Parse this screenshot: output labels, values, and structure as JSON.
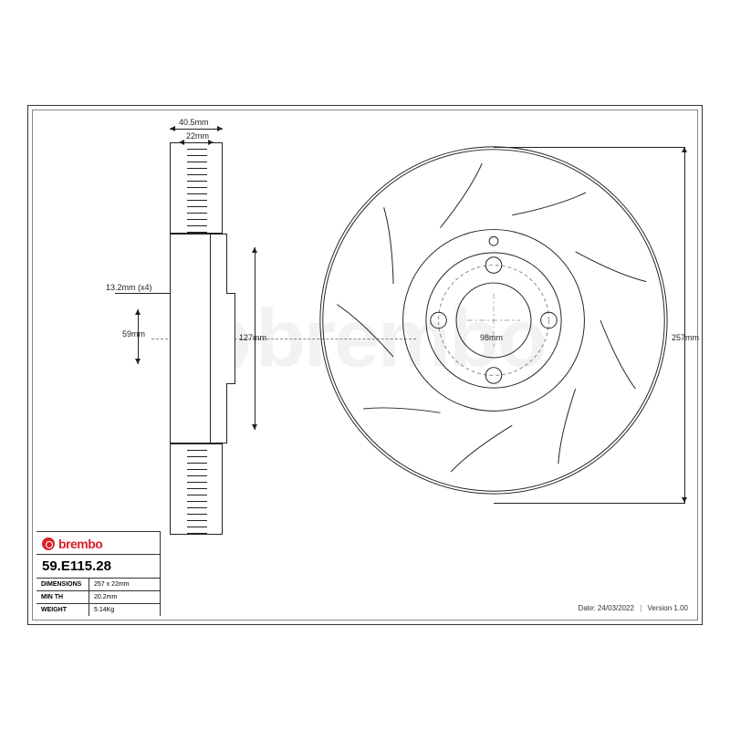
{
  "brand": "brembo",
  "brand_color": "#d8232a",
  "part_number": "59.E115.28",
  "specs": {
    "dimensions_label": "DIMENSIONS",
    "dimensions_value": "257 x 22mm",
    "min_th_label": "MIN TH",
    "min_th_value": "20.2mm",
    "weight_label": "WEIGHT",
    "weight_value": "5.14Kg"
  },
  "footer": {
    "date_label": "Date:",
    "date_value": "24/03/2022",
    "version_label": "Version",
    "version_value": "1.00"
  },
  "dimensions": {
    "overall_width": "40.5mm",
    "disc_thickness": "22mm",
    "bolt_hole": "13.2mm (x4)",
    "center_bore": "59mm",
    "hat_depth": "127mm",
    "pcd": "98mm",
    "outer_diameter": "257mm"
  },
  "drawing": {
    "line_color": "#222222",
    "guide_color": "#888888",
    "background": "#ffffff",
    "label_fontsize": 9,
    "face_outer_r": 195,
    "face_inner_r": 102,
    "face_hub_r": 76,
    "face_bore_r": 42,
    "bolt_circle_r": 62,
    "bolt_hole_r": 9,
    "bolt_count": 4,
    "slot_count": 9
  }
}
